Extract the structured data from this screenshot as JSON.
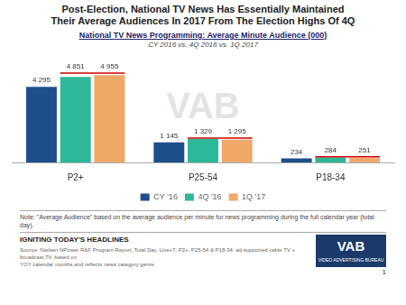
{
  "chart_data": {
    "type": "bar",
    "title": "Post-Election, National TV News Has Essentially Maintained\nTheir Average Audiences In 2017 From The Election Highs Of 4Q",
    "chart_title": "National TV News Programming: Average Minute Audience (000)",
    "subtitle": "CY 2016 vs. 4Q 2016 vs. 1Q 2017",
    "categories": [
      "P2+",
      "P25-54",
      "P18-34"
    ],
    "series": [
      {
        "name": "CY '16",
        "color": "#1f4e8c",
        "values": [
          4295,
          1145,
          234
        ],
        "value_labels": [
          "4 295",
          "1 145",
          "234"
        ]
      },
      {
        "name": "4Q '16",
        "color": "#2eb89a",
        "values": [
          4851,
          1329,
          284
        ],
        "value_labels": [
          "4 851",
          "1 329",
          "284"
        ]
      },
      {
        "name": "1Q '17",
        "color": "#f0a868",
        "values": [
          4955,
          1295,
          251
        ],
        "value_labels": [
          "4 955",
          "1 295",
          "251"
        ]
      }
    ],
    "ylim": [
      0,
      6200
    ],
    "grid": false,
    "tick_labels": "x",
    "data_labels": true,
    "legend": "bottom",
    "highlight_lines": [
      {
        "category": "P2+",
        "series": [
          "4Q '16",
          "1Q '17"
        ],
        "value": 5075,
        "color": "#cc0000"
      },
      {
        "category": "P25-54",
        "series": [
          "4Q '16",
          "1Q '17"
        ],
        "value": 1379,
        "color": "#cc0000"
      },
      {
        "category": "P18-34",
        "series": [
          "4Q '16",
          "1Q '17"
        ],
        "value": 314,
        "color": "#cc0000"
      }
    ],
    "watermark": "VAB",
    "note": "Note:  \"Average Audience\" based on the average audience per minute for news programming during the full calendar year (total day).",
    "footer_title": "IGNITING TODAY'S HEADLINES",
    "source": "Source: Nielsen NPower R&F Program Report, Total Day, Live+7; P2+, P25-54 & P18-34; ad-supported cable TV + broadcast TV, based on\nYOY calendar months and reflects news category genre.",
    "logo": "VAB",
    "logo_subtitle": "VIDEO ADVERTISING BUREAU",
    "page_number": "1"
  }
}
